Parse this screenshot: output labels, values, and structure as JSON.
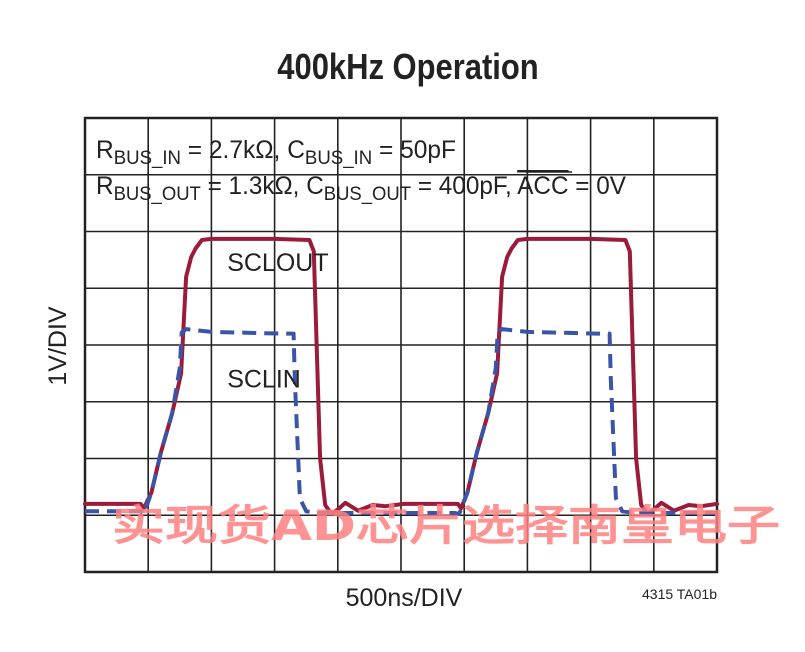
{
  "chart_data": {
    "type": "line",
    "title": "400kHz Operation",
    "xlabel": "500ns/DIV",
    "ylabel": "1V/DIV",
    "figure_id": "4315 TA01b",
    "grid": true,
    "x_divisions": 10,
    "y_divisions": 8,
    "x_unit": "div",
    "y_unit": "div",
    "xlim": [
      0,
      10
    ],
    "ylim": [
      0,
      8
    ],
    "annotation": {
      "line1": {
        "r": "R",
        "r_sub": "BUS_IN",
        "r_val": " = 2.7kΩ, ",
        "c": "C",
        "c_sub": "BUS_IN",
        "c_val": " = 50pF"
      },
      "line2": {
        "r": "R",
        "r_sub": "BUS_OUT",
        "r_val": " = 1.3kΩ, ",
        "c": "C",
        "c_sub": "BUS_OUT",
        "c_val": " = 400pF, ",
        "acc": "ACC",
        "acc_val": " = 0V"
      }
    },
    "series": [
      {
        "name": "SCLOUT",
        "color": "#9b1b3a",
        "dash": "solid",
        "points": [
          [
            0.0,
            1.2
          ],
          [
            0.88,
            1.2
          ],
          [
            0.93,
            1.12
          ],
          [
            1.05,
            1.4
          ],
          [
            1.2,
            2.1
          ],
          [
            1.38,
            2.8
          ],
          [
            1.52,
            3.5
          ],
          [
            1.6,
            5.2
          ],
          [
            1.68,
            5.55
          ],
          [
            1.75,
            5.7
          ],
          [
            1.85,
            5.85
          ],
          [
            2.0,
            5.87
          ],
          [
            3.0,
            5.87
          ],
          [
            3.55,
            5.85
          ],
          [
            3.62,
            5.65
          ],
          [
            3.72,
            2.0
          ],
          [
            3.8,
            1.18
          ],
          [
            3.9,
            1.02
          ],
          [
            4.02,
            1.12
          ],
          [
            4.12,
            1.22
          ],
          [
            4.32,
            1.08
          ],
          [
            4.55,
            1.18
          ],
          [
            4.75,
            1.16
          ],
          [
            5.05,
            1.2
          ],
          [
            5.9,
            1.2
          ],
          [
            5.95,
            1.12
          ],
          [
            6.05,
            1.4
          ],
          [
            6.2,
            2.1
          ],
          [
            6.38,
            2.8
          ],
          [
            6.52,
            3.5
          ],
          [
            6.6,
            5.2
          ],
          [
            6.68,
            5.55
          ],
          [
            6.75,
            5.7
          ],
          [
            6.85,
            5.85
          ],
          [
            7.0,
            5.87
          ],
          [
            8.0,
            5.87
          ],
          [
            8.55,
            5.85
          ],
          [
            8.62,
            5.65
          ],
          [
            8.72,
            2.0
          ],
          [
            8.8,
            1.18
          ],
          [
            8.9,
            1.02
          ],
          [
            9.02,
            1.12
          ],
          [
            9.12,
            1.22
          ],
          [
            9.32,
            1.08
          ],
          [
            9.55,
            1.18
          ],
          [
            9.75,
            1.16
          ],
          [
            10.0,
            1.2
          ]
        ]
      },
      {
        "name": "SCLIN",
        "color": "#3a55a8",
        "dash": "dashed",
        "points": [
          [
            0.0,
            1.07
          ],
          [
            0.88,
            1.07
          ],
          [
            0.93,
            1.02
          ],
          [
            1.05,
            1.4
          ],
          [
            1.2,
            2.1
          ],
          [
            1.38,
            2.8
          ],
          [
            1.5,
            3.6
          ],
          [
            1.53,
            4.22
          ],
          [
            1.6,
            4.28
          ],
          [
            2.0,
            4.23
          ],
          [
            3.1,
            4.2
          ],
          [
            3.3,
            4.2
          ],
          [
            3.32,
            3.4
          ],
          [
            3.4,
            1.3
          ],
          [
            3.5,
            1.07
          ],
          [
            3.7,
            1.04
          ],
          [
            5.85,
            1.04
          ],
          [
            5.92,
            1.02
          ],
          [
            6.05,
            1.4
          ],
          [
            6.2,
            2.1
          ],
          [
            6.38,
            2.8
          ],
          [
            6.5,
            3.6
          ],
          [
            6.53,
            4.22
          ],
          [
            6.6,
            4.28
          ],
          [
            7.0,
            4.23
          ],
          [
            8.1,
            4.2
          ],
          [
            8.3,
            4.2
          ],
          [
            8.32,
            3.4
          ],
          [
            8.4,
            1.3
          ],
          [
            8.5,
            1.07
          ],
          [
            8.7,
            1.04
          ],
          [
            10.0,
            1.04
          ]
        ]
      }
    ],
    "series_labels": [
      {
        "text": "SCLOUT",
        "series": "SCLOUT",
        "x": 2.25,
        "y": 5.3
      },
      {
        "text": "SCLIN",
        "series": "SCLIN",
        "x": 2.25,
        "y": 3.25
      }
    ]
  },
  "watermark": {
    "text": "实现货AD芯片选择南皇电子",
    "color": "#ff8080"
  }
}
